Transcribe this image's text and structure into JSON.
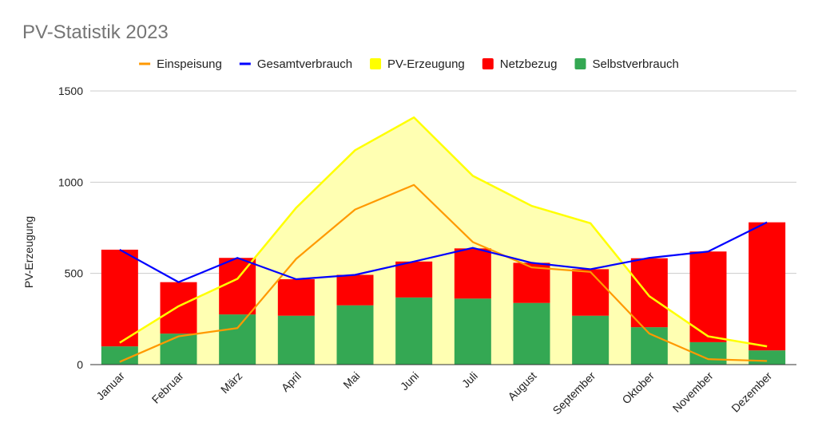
{
  "chart_data": {
    "type": "bar",
    "title": "PV-Statistik 2023",
    "ylabel": "PV-Erzeugung",
    "xlabel": "",
    "ylim": [
      0,
      1500
    ],
    "yticks": [
      0,
      500,
      1000,
      1500
    ],
    "grid": true,
    "legend_position": "top",
    "categories": [
      "Januar",
      "Februar",
      "März",
      "April",
      "Mai",
      "Juni",
      "Juli",
      "August",
      "September",
      "Oktober",
      "November",
      "Dezember"
    ],
    "legend_order": [
      "Einspeisung",
      "Gesamtverbrauch",
      "PV-Erzeugung",
      "Netzbezug",
      "Selbstverbrauch"
    ],
    "series": [
      {
        "name": "Selbstverbrauch",
        "type": "stacked-bar",
        "color": "#34a853",
        "values": [
          100,
          170,
          275,
          268,
          325,
          368,
          362,
          338,
          268,
          205,
          123,
          78
        ]
      },
      {
        "name": "Netzbezug",
        "type": "stacked-bar",
        "color": "#ff0000",
        "values": [
          530,
          282,
          310,
          200,
          167,
          197,
          275,
          220,
          255,
          378,
          497,
          702
        ]
      },
      {
        "name": "PV-Erzeugung",
        "type": "area",
        "color": "#ffff00",
        "fill": "#ffffb2",
        "values": [
          120,
          320,
          470,
          860,
          1175,
          1355,
          1035,
          870,
          775,
          375,
          155,
          100
        ]
      },
      {
        "name": "Einspeisung",
        "type": "line",
        "color": "#ff9900",
        "values": [
          15,
          155,
          200,
          580,
          850,
          985,
          672,
          533,
          508,
          170,
          30,
          20
        ]
      },
      {
        "name": "Gesamtverbrauch",
        "type": "line",
        "color": "#0000ff",
        "values": [
          630,
          452,
          585,
          468,
          492,
          565,
          640,
          558,
          523,
          585,
          620,
          780
        ]
      }
    ]
  }
}
